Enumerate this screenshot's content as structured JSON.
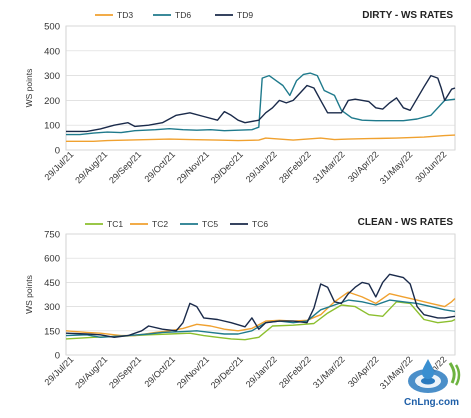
{
  "chart_data": [
    {
      "type": "line",
      "title": "DIRTY - WS RATES",
      "ylabel": "WS points",
      "ylim": [
        0,
        500
      ],
      "yticks": [
        0,
        100,
        200,
        300,
        400,
        500
      ],
      "xlabels": [
        "29/Jul/21",
        "29/Aug/21",
        "29/Sep/21",
        "29/Oct/21",
        "29/Nov/21",
        "29/Dec/21",
        "29/Jan/22",
        "28/Feb/22",
        "31/Mar/22",
        "30/Apr/22",
        "31/May/22",
        "30/Jun/22"
      ],
      "x_range": [
        0,
        113
      ],
      "legend_position": "top-left",
      "grid": true,
      "series": [
        {
          "name": "TD3",
          "color": "#f0a12f",
          "values": [
            [
              0,
              35
            ],
            [
              8,
              35
            ],
            [
              12,
              38
            ],
            [
              18,
              40
            ],
            [
              24,
              42
            ],
            [
              30,
              44
            ],
            [
              36,
              42
            ],
            [
              44,
              40
            ],
            [
              50,
              38
            ],
            [
              56,
              40
            ],
            [
              58,
              48
            ],
            [
              62,
              44
            ],
            [
              66,
              40
            ],
            [
              70,
              44
            ],
            [
              74,
              48
            ],
            [
              78,
              42
            ],
            [
              82,
              44
            ],
            [
              88,
              46
            ],
            [
              96,
              48
            ],
            [
              104,
              52
            ],
            [
              110,
              58
            ],
            [
              113,
              60
            ]
          ]
        },
        {
          "name": "TD6",
          "color": "#1f7a8c",
          "values": [
            [
              0,
              62
            ],
            [
              4,
              62
            ],
            [
              8,
              68
            ],
            [
              12,
              72
            ],
            [
              16,
              70
            ],
            [
              20,
              78
            ],
            [
              26,
              82
            ],
            [
              30,
              86
            ],
            [
              34,
              82
            ],
            [
              38,
              80
            ],
            [
              42,
              82
            ],
            [
              46,
              78
            ],
            [
              50,
              80
            ],
            [
              54,
              82
            ],
            [
              56,
              92
            ],
            [
              57,
              290
            ],
            [
              59,
              300
            ],
            [
              61,
              280
            ],
            [
              63,
              260
            ],
            [
              65,
              220
            ],
            [
              67,
              280
            ],
            [
              69,
              305
            ],
            [
              71,
              310
            ],
            [
              73,
              300
            ],
            [
              75,
              240
            ],
            [
              78,
              220
            ],
            [
              80,
              160
            ],
            [
              83,
              130
            ],
            [
              86,
              120
            ],
            [
              90,
              118
            ],
            [
              94,
              118
            ],
            [
              98,
              118
            ],
            [
              102,
              125
            ],
            [
              106,
              140
            ],
            [
              110,
              200
            ],
            [
              113,
              205
            ]
          ]
        },
        {
          "name": "TD9",
          "color": "#1a2a4a",
          "values": [
            [
              0,
              75
            ],
            [
              6,
              75
            ],
            [
              10,
              85
            ],
            [
              14,
              100
            ],
            [
              18,
              110
            ],
            [
              20,
              95
            ],
            [
              24,
              100
            ],
            [
              28,
              110
            ],
            [
              32,
              140
            ],
            [
              36,
              150
            ],
            [
              40,
              135
            ],
            [
              44,
              120
            ],
            [
              46,
              155
            ],
            [
              48,
              140
            ],
            [
              50,
              120
            ],
            [
              52,
              110
            ],
            [
              56,
              120
            ],
            [
              58,
              150
            ],
            [
              60,
              170
            ],
            [
              62,
              200
            ],
            [
              64,
              190
            ],
            [
              66,
              200
            ],
            [
              68,
              230
            ],
            [
              70,
              260
            ],
            [
              72,
              250
            ],
            [
              74,
              200
            ],
            [
              76,
              150
            ],
            [
              80,
              150
            ],
            [
              82,
              200
            ],
            [
              84,
              205
            ],
            [
              88,
              195
            ],
            [
              90,
              170
            ],
            [
              92,
              165
            ],
            [
              94,
              190
            ],
            [
              96,
              210
            ],
            [
              98,
              170
            ],
            [
              100,
              160
            ],
            [
              104,
              255
            ],
            [
              106,
              300
            ],
            [
              108,
              290
            ],
            [
              109,
              250
            ],
            [
              110,
              200
            ],
            [
              112,
              245
            ],
            [
              113,
              250
            ]
          ]
        }
      ]
    },
    {
      "type": "line",
      "title": "CLEAN - WS RATES",
      "ylabel": "WS points",
      "ylim": [
        0,
        750
      ],
      "yticks": [
        0,
        150,
        300,
        450,
        600,
        750
      ],
      "xlabels": [
        "29/Jul/21",
        "29/Aug/21",
        "29/Sep/21",
        "29/Oct/21",
        "29/Nov/21",
        "29/Dec/21",
        "29/Jan/22",
        "28/Feb/22",
        "31/Mar/22",
        "30/Apr/22",
        "31/May/22",
        "30/Jun/22"
      ],
      "x_range": [
        0,
        113
      ],
      "legend_position": "top-left",
      "grid": true,
      "series": [
        {
          "name": "TC1",
          "color": "#8cbf2e",
          "values": [
            [
              0,
              100
            ],
            [
              8,
              110
            ],
            [
              14,
              115
            ],
            [
              20,
              120
            ],
            [
              24,
              125
            ],
            [
              30,
              130
            ],
            [
              36,
              135
            ],
            [
              40,
              120
            ],
            [
              44,
              110
            ],
            [
              48,
              100
            ],
            [
              52,
              95
            ],
            [
              56,
              110
            ],
            [
              60,
              180
            ],
            [
              66,
              185
            ],
            [
              72,
              195
            ],
            [
              76,
              260
            ],
            [
              80,
              310
            ],
            [
              84,
              300
            ],
            [
              88,
              250
            ],
            [
              92,
              240
            ],
            [
              96,
              330
            ],
            [
              100,
              320
            ],
            [
              104,
              220
            ],
            [
              108,
              200
            ],
            [
              112,
              210
            ],
            [
              113,
              220
            ]
          ]
        },
        {
          "name": "TC2",
          "color": "#f0a12f",
          "values": [
            [
              0,
              150
            ],
            [
              6,
              140
            ],
            [
              10,
              135
            ],
            [
              16,
              120
            ],
            [
              20,
              120
            ],
            [
              26,
              140
            ],
            [
              30,
              150
            ],
            [
              34,
              165
            ],
            [
              38,
              190
            ],
            [
              42,
              180
            ],
            [
              46,
              160
            ],
            [
              50,
              150
            ],
            [
              54,
              165
            ],
            [
              58,
              210
            ],
            [
              62,
              215
            ],
            [
              66,
              210
            ],
            [
              70,
              215
            ],
            [
              74,
              250
            ],
            [
              78,
              330
            ],
            [
              82,
              390
            ],
            [
              86,
              360
            ],
            [
              90,
              320
            ],
            [
              94,
              380
            ],
            [
              98,
              360
            ],
            [
              102,
              340
            ],
            [
              106,
              320
            ],
            [
              110,
              300
            ],
            [
              112,
              330
            ],
            [
              113,
              350
            ]
          ]
        },
        {
          "name": "TC5",
          "color": "#1f7a8c",
          "values": [
            [
              0,
              120
            ],
            [
              6,
              125
            ],
            [
              10,
              110
            ],
            [
              14,
              115
            ],
            [
              18,
              120
            ],
            [
              24,
              130
            ],
            [
              28,
              140
            ],
            [
              34,
              145
            ],
            [
              38,
              150
            ],
            [
              42,
              140
            ],
            [
              46,
              130
            ],
            [
              50,
              130
            ],
            [
              54,
              150
            ],
            [
              58,
              200
            ],
            [
              62,
              210
            ],
            [
              66,
              200
            ],
            [
              70,
              210
            ],
            [
              74,
              280
            ],
            [
              78,
              310
            ],
            [
              82,
              340
            ],
            [
              86,
              330
            ],
            [
              90,
              310
            ],
            [
              94,
              340
            ],
            [
              98,
              330
            ],
            [
              102,
              320
            ],
            [
              106,
              300
            ],
            [
              110,
              280
            ],
            [
              113,
              270
            ]
          ]
        },
        {
          "name": "TC6",
          "color": "#1a2a4a",
          "values": [
            [
              0,
              135
            ],
            [
              6,
              130
            ],
            [
              10,
              125
            ],
            [
              14,
              110
            ],
            [
              18,
              120
            ],
            [
              22,
              150
            ],
            [
              24,
              180
            ],
            [
              28,
              160
            ],
            [
              32,
              150
            ],
            [
              34,
              200
            ],
            [
              36,
              320
            ],
            [
              38,
              300
            ],
            [
              40,
              230
            ],
            [
              44,
              220
            ],
            [
              48,
              200
            ],
            [
              52,
              175
            ],
            [
              54,
              230
            ],
            [
              56,
              160
            ],
            [
              58,
              200
            ],
            [
              62,
              210
            ],
            [
              66,
              210
            ],
            [
              70,
              200
            ],
            [
              72,
              290
            ],
            [
              74,
              440
            ],
            [
              76,
              420
            ],
            [
              78,
              330
            ],
            [
              80,
              320
            ],
            [
              82,
              380
            ],
            [
              84,
              420
            ],
            [
              86,
              450
            ],
            [
              88,
              440
            ],
            [
              90,
              360
            ],
            [
              92,
              450
            ],
            [
              94,
              500
            ],
            [
              96,
              490
            ],
            [
              98,
              480
            ],
            [
              100,
              440
            ],
            [
              102,
              300
            ],
            [
              104,
              250
            ],
            [
              106,
              240
            ],
            [
              108,
              230
            ],
            [
              110,
              230
            ],
            [
              113,
              240
            ]
          ]
        }
      ]
    }
  ],
  "watermark": {
    "text": "CnLng.com",
    "icon": "lng-droplet-logo-icon"
  }
}
